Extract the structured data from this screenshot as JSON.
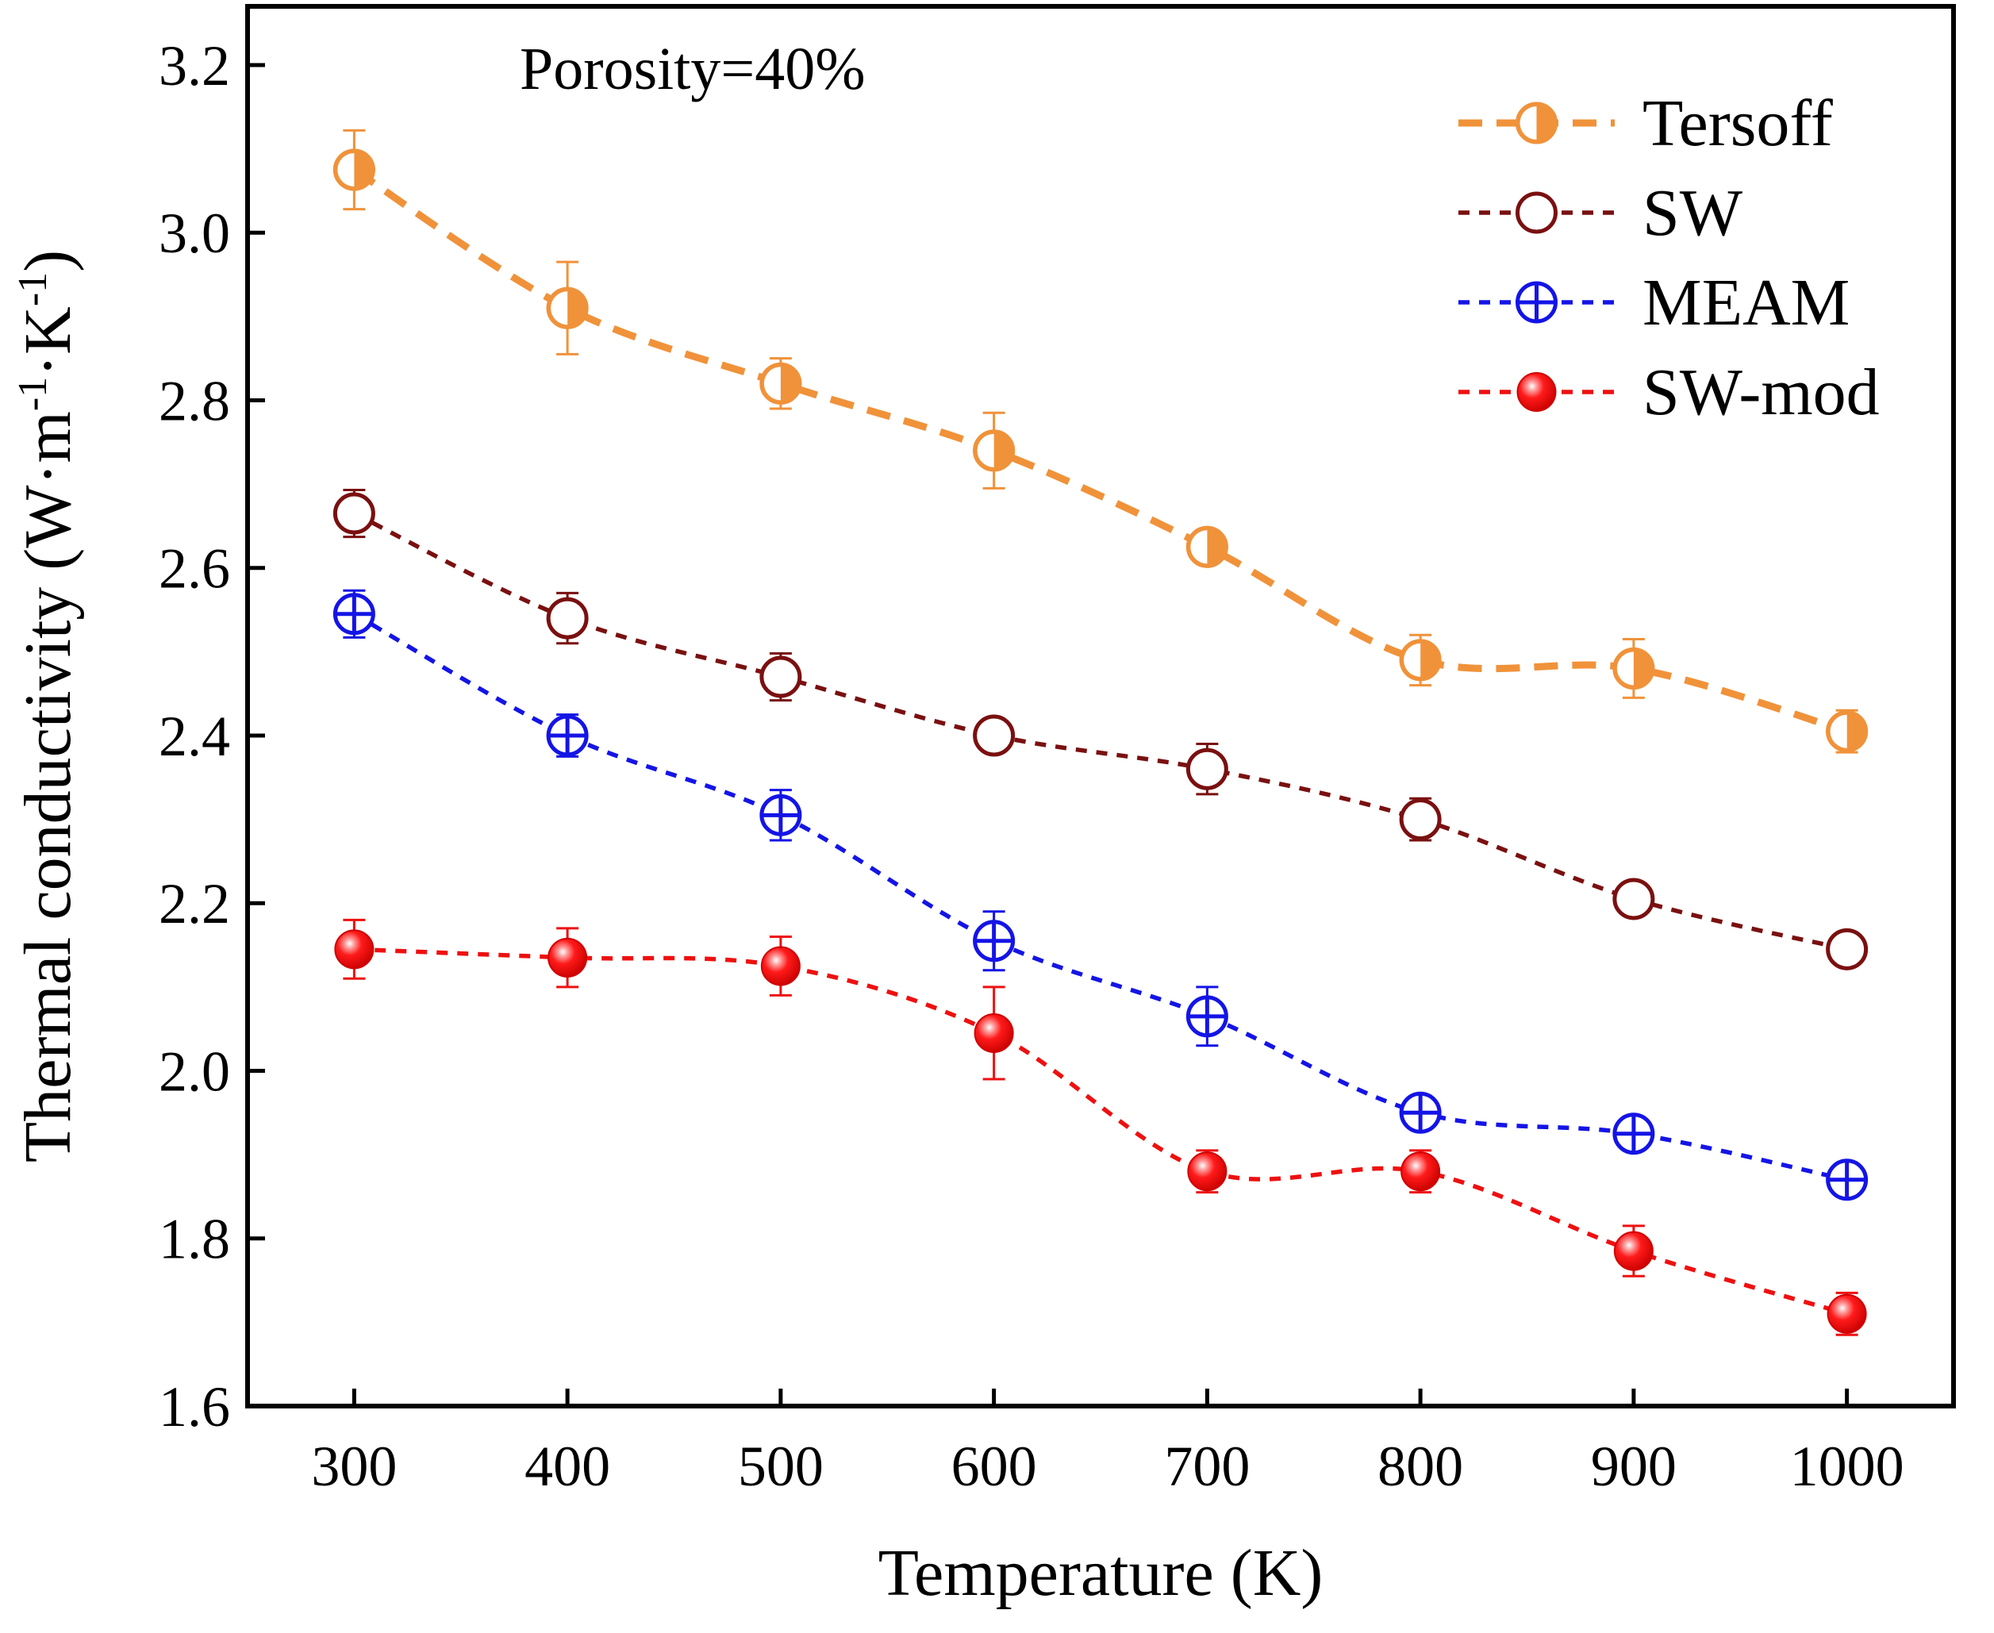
{
  "chart_data": {
    "type": "line",
    "title": "",
    "annotation": "Porosity=40%",
    "xlabel": "Temperature (K)",
    "ylabel_parts": {
      "prefix": "Thermal conductivity (W·m",
      "sup1": "-1",
      "middle": "·K",
      "sup2": "-1",
      "suffix": ")"
    },
    "x": [
      300,
      400,
      500,
      600,
      700,
      800,
      900,
      1000
    ],
    "xlim": [
      250,
      1050
    ],
    "ylim": [
      1.6,
      3.27
    ],
    "x_ticks": [
      "300",
      "400",
      "500",
      "600",
      "700",
      "800",
      "900",
      "1000"
    ],
    "y_ticks": [
      "1.6",
      "1.8",
      "2.0",
      "2.2",
      "2.4",
      "2.6",
      "2.8",
      "3.0",
      "3.2"
    ],
    "grid": false,
    "legend_position": "top-right",
    "series": [
      {
        "name": "Tersoff",
        "color": "#f0923a",
        "marker": "half-filled-circle",
        "line_style": "thick-dashed",
        "values": [
          3.075,
          2.91,
          2.82,
          2.74,
          2.625,
          2.49,
          2.48,
          2.405
        ],
        "errors": [
          0.047,
          0.055,
          0.03,
          0.045,
          0.02,
          0.03,
          0.035,
          0.025
        ]
      },
      {
        "name": "SW",
        "color": "#7a1010",
        "marker": "open-circle",
        "line_style": "dashed",
        "values": [
          2.665,
          2.54,
          2.47,
          2.4,
          2.36,
          2.3,
          2.205,
          2.145
        ],
        "errors": [
          0.028,
          0.03,
          0.028,
          0.02,
          0.03,
          0.025,
          0.018,
          0.012
        ]
      },
      {
        "name": "MEAM",
        "color": "#1414e6",
        "marker": "crossed-circle",
        "line_style": "dashed",
        "values": [
          2.545,
          2.4,
          2.305,
          2.155,
          2.065,
          1.95,
          1.925,
          1.87
        ],
        "errors": [
          0.028,
          0.025,
          0.03,
          0.035,
          0.035,
          0.02,
          0.02,
          0.015
        ]
      },
      {
        "name": "SW-mod",
        "color": "#ee1010",
        "marker": "filled-sphere",
        "line_style": "dashed",
        "values": [
          2.145,
          2.135,
          2.125,
          2.045,
          1.88,
          1.88,
          1.785,
          1.71
        ],
        "errors": [
          0.035,
          0.035,
          0.035,
          0.055,
          0.025,
          0.025,
          0.03,
          0.025
        ]
      }
    ]
  }
}
